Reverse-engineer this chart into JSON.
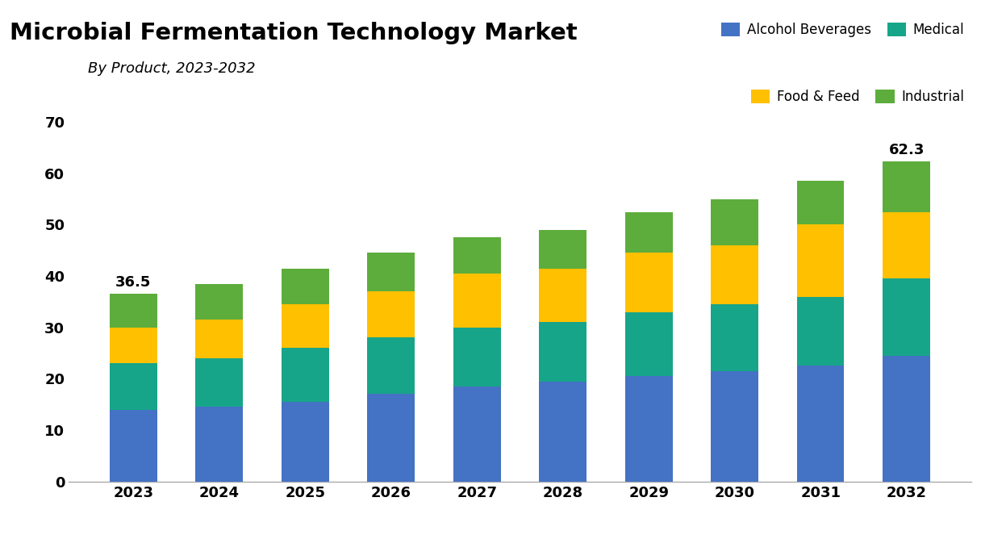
{
  "title": "Microbial Fermentation Technology Market",
  "subtitle": "By Product, 2023-2032",
  "years": [
    2023,
    2024,
    2025,
    2026,
    2027,
    2028,
    2029,
    2030,
    2031,
    2032
  ],
  "alcohol_beverages": [
    14.0,
    14.5,
    15.5,
    17.0,
    18.5,
    19.5,
    20.5,
    21.5,
    22.5,
    24.5
  ],
  "medical": [
    9.0,
    9.5,
    10.5,
    11.0,
    11.5,
    11.5,
    12.5,
    13.0,
    13.5,
    15.0
  ],
  "food_feed": [
    7.0,
    7.5,
    8.5,
    9.0,
    10.5,
    10.5,
    11.5,
    11.5,
    14.0,
    13.0
  ],
  "industrial": [
    6.5,
    7.0,
    7.0,
    7.5,
    7.0,
    7.5,
    8.0,
    9.0,
    8.5,
    9.8
  ],
  "label_first": "36.5",
  "label_last": "62.3",
  "colors": {
    "alcohol_beverages": "#4472C4",
    "medical": "#17A589",
    "food_feed": "#FFC000",
    "industrial": "#5DAD3C"
  },
  "ylim": [
    0,
    75
  ],
  "yticks": [
    0,
    10,
    20,
    30,
    40,
    50,
    60,
    70
  ],
  "background_color": "#FFFFFF",
  "legend_labels": [
    "Alcohol Beverages",
    "Medical",
    "Food & Feed",
    "Industrial"
  ],
  "legend_colors": [
    "#4472C4",
    "#17A589",
    "#FFC000",
    "#5DAD3C"
  ]
}
